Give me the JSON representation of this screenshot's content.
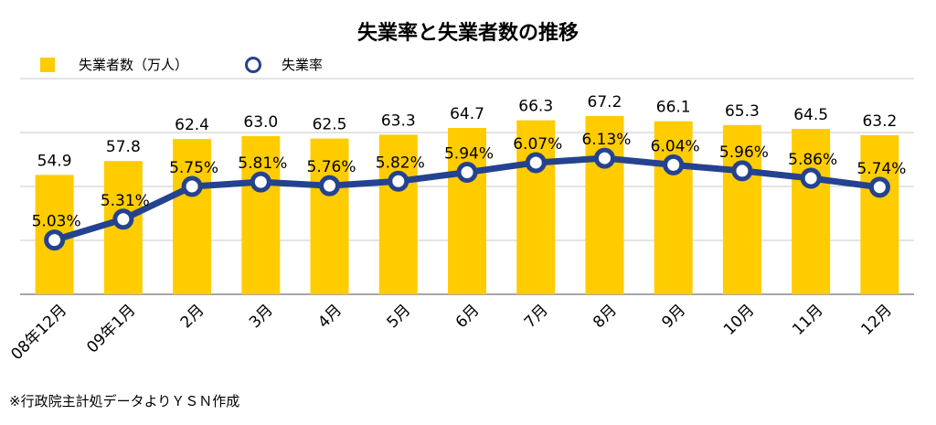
{
  "chart_data": {
    "type": "bar+line",
    "title": "失業率と失業者数の推移",
    "categories": [
      "08年12月",
      "09年1月",
      "2月",
      "3月",
      "4月",
      "5月",
      "6月",
      "7月",
      "8月",
      "9月",
      "10月",
      "11月",
      "12月"
    ],
    "series": [
      {
        "name": "失業者数（万人）",
        "type": "bar",
        "color": "#FFCC00",
        "values": [
          54.9,
          57.8,
          62.4,
          63.0,
          62.5,
          63.3,
          64.7,
          66.3,
          67.2,
          66.1,
          65.3,
          64.5,
          63.2
        ],
        "labels": [
          "54.9",
          "57.8",
          "62.4",
          "63.0",
          "62.5",
          "63.3",
          "64.7",
          "66.3",
          "67.2",
          "66.1",
          "65.3",
          "64.5",
          "63.2"
        ],
        "ylim": [
          30,
          75
        ]
      },
      {
        "name": "失業率",
        "type": "line",
        "color": "#24428F",
        "values": [
          5.03,
          5.31,
          5.75,
          5.81,
          5.76,
          5.82,
          5.94,
          6.07,
          6.13,
          6.04,
          5.96,
          5.86,
          5.74
        ],
        "labels": [
          "5.03%",
          "5.31%",
          "5.75%",
          "5.81%",
          "5.76%",
          "5.82%",
          "5.94%",
          "6.07%",
          "6.13%",
          "6.04%",
          "5.96%",
          "5.86%",
          "5.74%"
        ],
        "ylim": [
          4.3,
          7.2
        ]
      }
    ],
    "grid": true,
    "legend_position": "top-left"
  },
  "footnote": "※行政院主計処データよりＹＳＮ作成"
}
